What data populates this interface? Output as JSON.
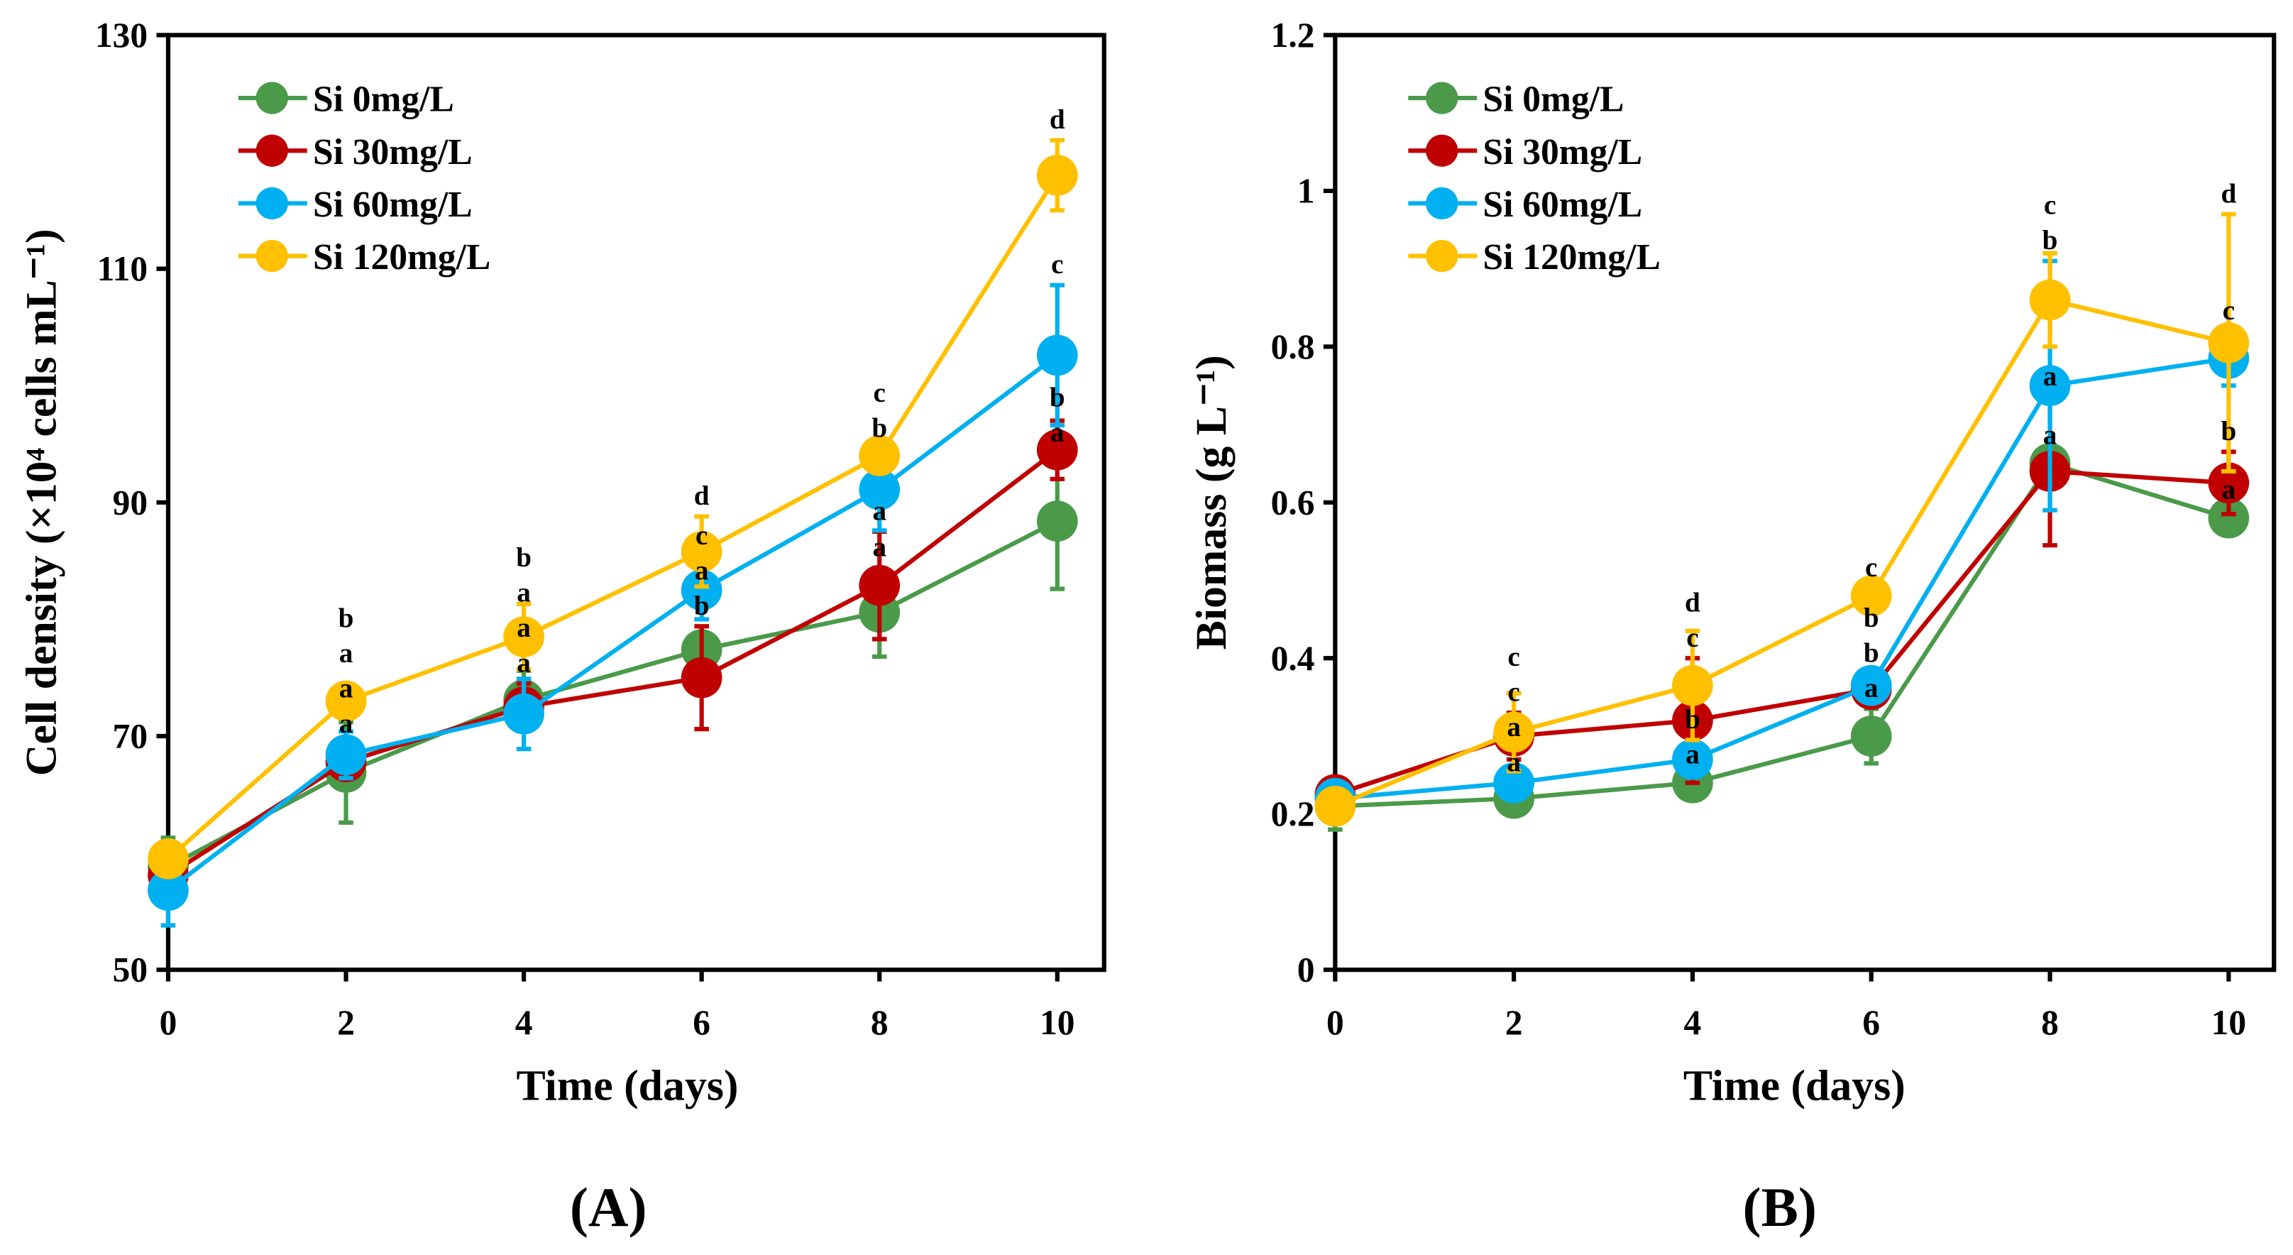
{
  "chart_data": [
    {
      "type": "line",
      "panel_label": "(A)",
      "xlabel": "Time (days)",
      "ylabel": "Cell density (×10⁴ cells mL⁻¹)",
      "x": [
        0,
        2,
        4,
        6,
        8,
        10
      ],
      "xticks": [
        "0",
        "2",
        "4",
        "6",
        "8",
        "10"
      ],
      "ylim": [
        50,
        130
      ],
      "yticks": [
        "50",
        "70",
        "90",
        "110",
        "130"
      ],
      "yticks_values": [
        50,
        70,
        90,
        110,
        130
      ],
      "legend": "top-left",
      "grid": false,
      "series": [
        {
          "name": "Si 0mg/L",
          "color": "#4a9a4a",
          "values": [
            58.8,
            66.9,
            73.1,
            77.4,
            80.6,
            88.4
          ],
          "errors": [
            2.5,
            4.3,
            2.5,
            2.0,
            3.8,
            5.8
          ],
          "letters": [
            "",
            "a",
            "a",
            "b",
            "a",
            "a"
          ]
        },
        {
          "name": "Si 30mg/L",
          "color": "#c00000",
          "values": [
            58.1,
            67.8,
            72.5,
            75.0,
            82.9,
            94.5
          ],
          "errors": [
            1.0,
            1.5,
            2.0,
            4.4,
            4.6,
            2.5
          ],
          "letters": [
            "",
            "a",
            "a",
            "a",
            "a",
            "b"
          ]
        },
        {
          "name": "Si 60mg/L",
          "color": "#00b0f0",
          "values": [
            56.8,
            68.4,
            71.9,
            82.5,
            91.1,
            102.6
          ],
          "errors": [
            3.0,
            2.0,
            3.0,
            2.5,
            3.5,
            6.0
          ],
          "letters": [
            "",
            "a",
            "a",
            "c",
            "b",
            "c"
          ]
        },
        {
          "name": "Si 120mg/L",
          "color": "#ffc000",
          "values": [
            59.5,
            73.0,
            78.5,
            85.8,
            94.0,
            118.0
          ],
          "errors": [
            1.0,
            1.0,
            2.8,
            3.0,
            1.0,
            3.0
          ],
          "letters": [
            "",
            "b",
            "b",
            "d",
            "c",
            "d"
          ]
        }
      ]
    },
    {
      "type": "line",
      "panel_label": "(B)",
      "xlabel": "Time (days)",
      "ylabel": "Biomass (g L⁻¹)",
      "x": [
        0,
        2,
        4,
        6,
        8,
        10
      ],
      "xticks": [
        "0",
        "2",
        "4",
        "6",
        "8",
        "10"
      ],
      "ylim": [
        0,
        1.2
      ],
      "yticks": [
        "0",
        "0.2",
        "0.4",
        "0.6",
        "0.8",
        "1",
        "1.2"
      ],
      "yticks_values": [
        0,
        0.2,
        0.4,
        0.6,
        0.8,
        1.0,
        1.2
      ],
      "legend": "top-left",
      "grid": false,
      "series": [
        {
          "name": "Si 0mg/L",
          "color": "#4a9a4a",
          "values": [
            0.21,
            0.22,
            0.24,
            0.3,
            0.65,
            0.58
          ],
          "errors": [
            0.03,
            0.02,
            0.01,
            0.035,
            0.01,
            0.01
          ],
          "letters": [
            "",
            "a",
            "a",
            "a",
            "a",
            "a"
          ]
        },
        {
          "name": "Si 30mg/L",
          "color": "#c00000",
          "values": [
            0.225,
            0.3,
            0.32,
            0.36,
            0.64,
            0.625
          ],
          "errors": [
            0.01,
            0.03,
            0.08,
            0.02,
            0.095,
            0.04
          ],
          "letters": [
            "",
            "c",
            "c",
            "b",
            "a",
            "b"
          ]
        },
        {
          "name": "Si 60mg/L",
          "color": "#00b0f0",
          "values": [
            0.22,
            0.24,
            0.27,
            0.365,
            0.75,
            0.785
          ],
          "errors": [
            0.01,
            0.01,
            0.01,
            0.02,
            0.16,
            0.035
          ],
          "letters": [
            "",
            "a",
            "b",
            "b",
            "b",
            "c"
          ]
        },
        {
          "name": "Si 120mg/L",
          "color": "#ffc000",
          "values": [
            0.21,
            0.305,
            0.365,
            0.48,
            0.86,
            0.805
          ],
          "errors": [
            0.01,
            0.05,
            0.07,
            0.01,
            0.06,
            0.165
          ],
          "letters": [
            "",
            "c",
            "d",
            "c",
            "c",
            "d"
          ]
        }
      ]
    }
  ]
}
